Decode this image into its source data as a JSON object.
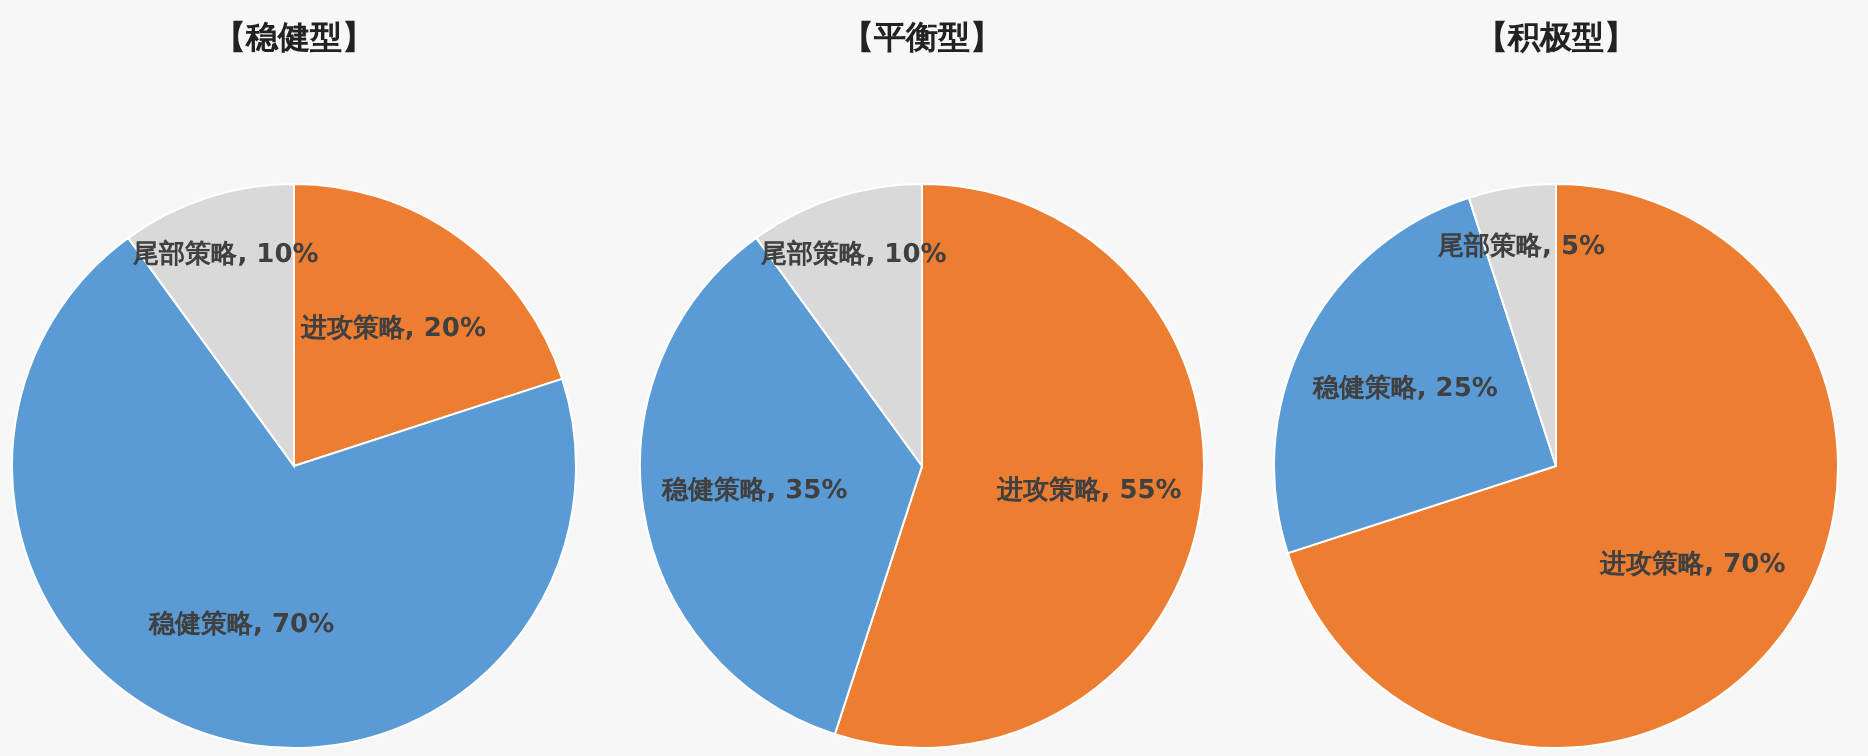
{
  "chart_data": [
    {
      "type": "pie",
      "title": "【稳健型】",
      "categories": [
        "进攻策略",
        "稳健策略",
        "尾部策略"
      ],
      "values": [
        20,
        70,
        10
      ],
      "colors": [
        "#ed7d31",
        "#5b9bd5",
        "#d9d9d9"
      ],
      "value_labels": [
        "20%",
        "70%",
        "10%"
      ]
    },
    {
      "type": "pie",
      "title": "【平衡型】",
      "categories": [
        "进攻策略",
        "稳健策略",
        "尾部策略"
      ],
      "values": [
        55,
        35,
        10
      ],
      "colors": [
        "#ed7d31",
        "#5b9bd5",
        "#d9d9d9"
      ],
      "value_labels": [
        "55%",
        "35%",
        "10%"
      ]
    },
    {
      "type": "pie",
      "title": "【积极型】",
      "categories": [
        "进攻策略",
        "稳健策略",
        "尾部策略"
      ],
      "values": [
        70,
        25,
        5
      ],
      "colors": [
        "#ed7d31",
        "#5b9bd5",
        "#d9d9d9"
      ],
      "value_labels": [
        "70%",
        "25%",
        "5%"
      ]
    }
  ]
}
